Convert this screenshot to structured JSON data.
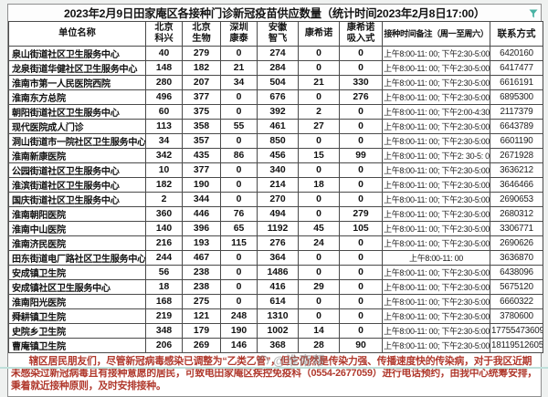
{
  "header": {
    "title": "2023年2月9日田家庵区各接种门诊新冠疫苗供应数量（统计时间2023年2月8日17:00）",
    "filter_icon": "autofilter-funnel",
    "filter_color": "#4ab3a4"
  },
  "table": {
    "columns": [
      {
        "label": "单位名称",
        "lines": [
          "单位名称"
        ]
      },
      {
        "label": "北京科兴",
        "lines": [
          "北京",
          "科兴"
        ]
      },
      {
        "label": "北京生物",
        "lines": [
          "北京",
          "生物"
        ]
      },
      {
        "label": "深圳康泰",
        "lines": [
          "深圳",
          "康泰"
        ]
      },
      {
        "label": "安徽智飞",
        "lines": [
          "安徽",
          "智飞"
        ]
      },
      {
        "label": "康希诺",
        "lines": [
          "康希诺"
        ]
      },
      {
        "label": "康希诺吸入式",
        "lines": [
          "康希诺",
          "吸入式"
        ]
      },
      {
        "label": "接种时间备注（周一至周六）",
        "lines": [
          "接种时间备注（周一至周六）"
        ]
      },
      {
        "label": "联系方式",
        "lines": [
          "联系方式"
        ]
      }
    ],
    "rows": [
      {
        "name": "泉山街道社区卫生服务中心",
        "values": [
          "40",
          "279",
          "0",
          "274",
          "0",
          "0"
        ],
        "schedule": "上午8:00-11: 00; 下午2:30-5:00",
        "contact": "6420160"
      },
      {
        "name": "龙泉街道华健社区卫生服务中心",
        "values": [
          "148",
          "182",
          "21",
          "284",
          "0",
          "0"
        ],
        "schedule": "上午8:00-11: 00; 下午2:30-5:00",
        "contact": "6417477"
      },
      {
        "name": "淮南市第一人民医院西院",
        "values": [
          "280",
          "207",
          "34",
          "504",
          "21",
          "330"
        ],
        "schedule": "上午8:00-11: 00; 下午2:30-5:00",
        "contact": "6616191"
      },
      {
        "name": "淮南东方总院",
        "values": [
          "496",
          "377",
          "0",
          "676",
          "0",
          "276"
        ],
        "schedule": "上午8:00-11: 00; 下午2:30-5:00",
        "contact": "6895300"
      },
      {
        "name": "朝阳街道社区卫生服务中心",
        "values": [
          "60",
          "375",
          "0",
          "392",
          "2",
          "0"
        ],
        "schedule": "上午8:00-11: 00; 下午2:00-4:30",
        "contact": "2117379"
      },
      {
        "name": "现代医院成人门诊",
        "values": [
          "113",
          "358",
          "55",
          "461",
          "27",
          "0"
        ],
        "schedule": "上午8:00-11: 00; 下午2:30-5:00",
        "contact": "6643789"
      },
      {
        "name": "洞山街道市一院社区卫生服务中心",
        "values": [
          "34",
          "357",
          "0",
          "850",
          "0",
          "0"
        ],
        "schedule": "上午8:00-11: 00; 下午2:30-5:00",
        "contact": "6601190"
      },
      {
        "name": "淮南新康医院",
        "values": [
          "342",
          "435",
          "86",
          "456",
          "15",
          "99"
        ],
        "schedule": "上午8:00-11: 00; 下午2: 30-5: 00",
        "contact": "2671928"
      },
      {
        "name": "公园街道社区卫生服务中心",
        "values": [
          "10",
          "377",
          "0",
          "340",
          "0",
          "0"
        ],
        "schedule": "上午8:00-11: 00; 下午2:30-5:00",
        "contact": "3636212"
      },
      {
        "name": "淮滨街道社区卫生服务中心",
        "values": [
          "182",
          "190",
          "0",
          "214",
          "18",
          "0"
        ],
        "schedule": "上午8:00-11: 00; 下午2:30-5:00",
        "contact": "3646466"
      },
      {
        "name": "国庆街道社区卫生服务中心",
        "values": [
          "2",
          "344",
          "0",
          "270",
          "0",
          "0"
        ],
        "schedule": "上午8:00-11: 00; 下午2:30-5:00",
        "contact": "2690653"
      },
      {
        "name": "淮南朝阳医院",
        "values": [
          "360",
          "446",
          "76",
          "494",
          "0",
          "279"
        ],
        "schedule": "上午8:00-11: 00; 下午2:30-5:00",
        "contact": "2680312"
      },
      {
        "name": "淮南中山医院",
        "values": [
          "140",
          "396",
          "65",
          "1192",
          "45",
          "105"
        ],
        "schedule": "上午8:00-11: 00; 下午2:30-5:00",
        "contact": "3306771"
      },
      {
        "name": "淮南济民医院",
        "values": [
          "216",
          "193",
          "115",
          "276",
          "24",
          "0"
        ],
        "schedule": "上午8:00-11: 00; 下午2:30-5:00",
        "contact": "2690626"
      },
      {
        "name": "田东街道电厂路社区卫生服务中心",
        "values": [
          "244",
          "467",
          "0",
          "364",
          "0",
          "0"
        ],
        "schedule": "上午8:00-11: 00",
        "contact": "3636870"
      },
      {
        "name": "安成镇卫生院",
        "values": [
          "56",
          "238",
          "0",
          "1486",
          "0",
          "0"
        ],
        "schedule": "上午8:00-11: 00; 下午2:30-5:00",
        "contact": "6438096"
      },
      {
        "name": "安成镇社区卫生服务中心",
        "values": [
          "18",
          "238",
          "0",
          "416",
          "29",
          "0"
        ],
        "schedule": "上午8:00-11: 00; 下午2:30-5:00",
        "contact": "5675120"
      },
      {
        "name": "淮南阳光医院",
        "values": [
          "168",
          "275",
          "0",
          "614",
          "0",
          "0"
        ],
        "schedule": "上午8:00-11: 00; 下午2:30-5:00",
        "contact": "6660322"
      },
      {
        "name": "舜耕镇卫生院",
        "values": [
          "219",
          "121",
          "248",
          "1310",
          "0",
          "0"
        ],
        "schedule": "上午8:00-11: 00; 下午2:30-5:00",
        "contact": "3780600"
      },
      {
        "name": "史院乡卫生院",
        "values": [
          "348",
          "179",
          "190",
          "1002",
          "14",
          "0"
        ],
        "schedule": "上午8:00-11: 00; 下午2:30-5:00",
        "contact": "17755473609"
      },
      {
        "name": "曹庵镇卫生院",
        "values": [
          "206",
          "269",
          "146",
          "368",
          "28",
          "90"
        ],
        "schedule": "上午8:00-11: 00; 下午2:30-5:00",
        "contact": "18119512605"
      }
    ]
  },
  "note": {
    "text": "辖区居民朋友们，尽管新冠病毒感染已调整为“乙类乙管”，但它仍然是传染力强、传播速度快的传染病，对于我区近期未感染过新冠病毒且有接种意愿的居民，可致电田家庵区疾控免疫科（0554-2677059）进行电话预约，由我中心统筹安排，秉着就近接种原则，及时安排接种。",
    "color": "#b0382c"
  },
  "watermark": {
    "text": "@淮南帮"
  },
  "colors": {
    "accent_teal": "#4ab3a4",
    "grid_border": "#4a4a4a",
    "note_red": "#b0382c",
    "bottom_divider": "#bfe0da"
  }
}
